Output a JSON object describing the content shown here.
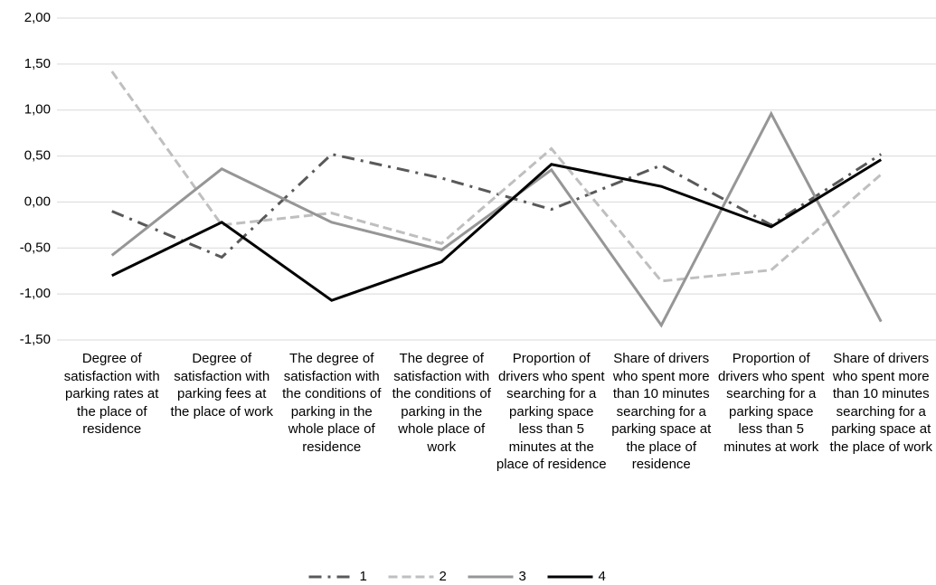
{
  "chart_data": {
    "type": "line",
    "categories": [
      "Degree of satisfaction with parking rates at the place of residence",
      "Degree of satisfaction with parking fees at the place of work",
      "The degree of satisfaction with the conditions of parking in the whole place of residence",
      "The degree of satisfaction with the conditions of parking in the whole place of work",
      "Proportion of drivers who spent searching for a parking space less than 5 minutes at the place of residence",
      "Share of drivers who spent more than 10 minutes searching for a parking space at the place of residence",
      "Proportion of drivers who spent searching for a parking space less than 5 minutes at work",
      "Share of drivers who spent more than 10 minutes searching for a parking space at the place of work"
    ],
    "series": [
      {
        "name": "1",
        "color": "#595959",
        "dash": "dashdot",
        "values": [
          -0.1,
          -0.6,
          0.52,
          0.26,
          -0.08,
          0.4,
          -0.25,
          0.52
        ]
      },
      {
        "name": "2",
        "color": "#bfbfbf",
        "dash": "dash",
        "values": [
          1.42,
          -0.25,
          -0.12,
          -0.45,
          0.58,
          -0.86,
          -0.74,
          0.3
        ]
      },
      {
        "name": "3",
        "color": "#969696",
        "dash": "solid",
        "values": [
          -0.58,
          0.36,
          -0.22,
          -0.52,
          0.35,
          -1.34,
          0.96,
          -1.3
        ]
      },
      {
        "name": "4",
        "color": "#000000",
        "dash": "solid",
        "values": [
          -0.8,
          -0.22,
          -1.07,
          -0.65,
          0.41,
          0.17,
          -0.27,
          0.46
        ]
      }
    ],
    "ylim": [
      -1.5,
      2
    ],
    "yticks": [
      {
        "value": -1.5,
        "label": "-1,50"
      },
      {
        "value": -1,
        "label": "-1,00"
      },
      {
        "value": -0.5,
        "label": "-0,50"
      },
      {
        "value": 0,
        "label": "0,00"
      },
      {
        "value": 0.5,
        "label": "0,50"
      },
      {
        "value": 1,
        "label": "1,00"
      },
      {
        "value": 1.5,
        "label": "1,50"
      },
      {
        "value": 2,
        "label": "2,00"
      }
    ],
    "grid": true,
    "legend": "bottom"
  }
}
